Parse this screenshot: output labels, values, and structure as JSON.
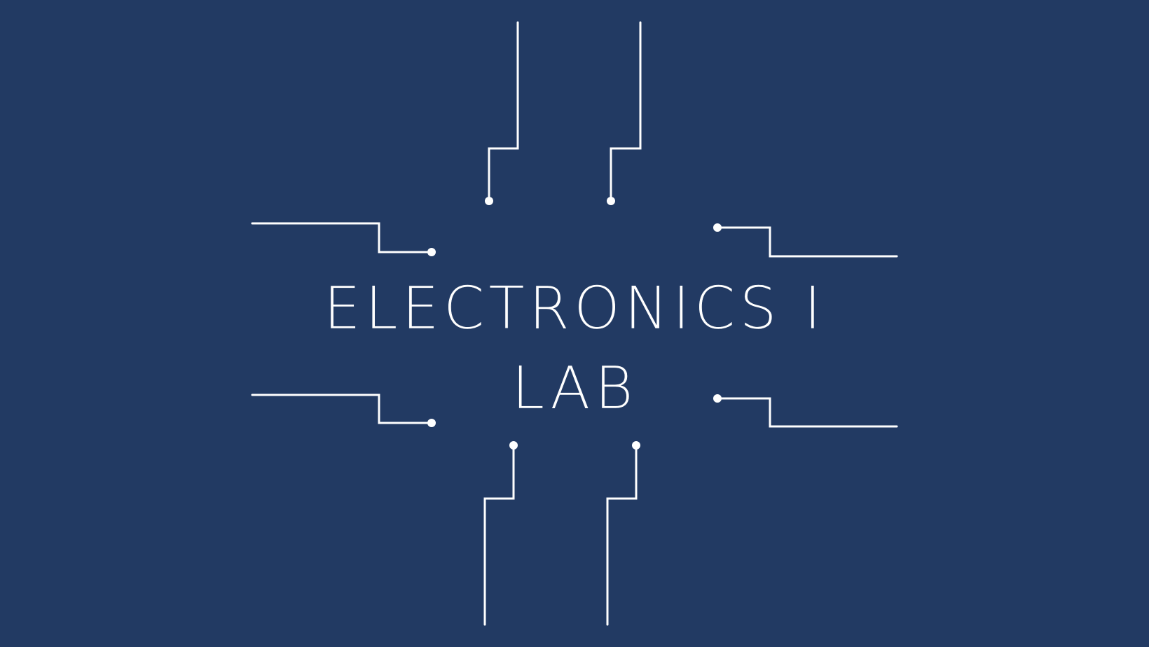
{
  "title": {
    "line1": "ELECTRONICS I",
    "line2": "LAB"
  },
  "colors": {
    "background": "#223a63",
    "foreground": "#ffffff"
  },
  "decoration": "circuit-trace-icons"
}
